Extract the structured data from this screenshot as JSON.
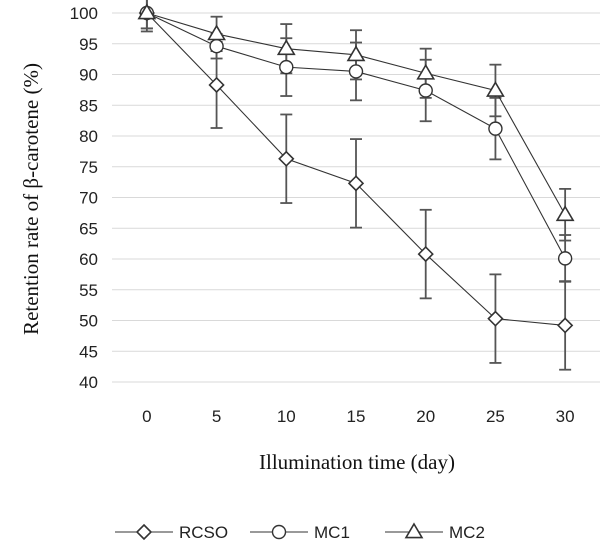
{
  "chart_data": {
    "type": "line",
    "title": "",
    "xlabel": "Illumination time (day)",
    "ylabel": "Retention rate of β-carotene (%)",
    "x": [
      0,
      5,
      10,
      15,
      20,
      25,
      30
    ],
    "xlim": [
      0,
      30
    ],
    "ylim": [
      40,
      100
    ],
    "yticks": [
      40,
      45,
      50,
      55,
      60,
      65,
      70,
      75,
      80,
      85,
      90,
      95,
      100
    ],
    "grid": true,
    "legend_position": "bottom",
    "series": [
      {
        "name": "RCSO",
        "marker": "diamond",
        "values": [
          100,
          88.3,
          76.3,
          72.3,
          60.8,
          50.3,
          49.2
        ],
        "errors": [
          2.5,
          7.0,
          7.2,
          7.2,
          7.2,
          7.2,
          7.2
        ]
      },
      {
        "name": "MC1",
        "marker": "circle",
        "values": [
          100,
          94.6,
          91.2,
          90.5,
          87.4,
          81.2,
          60.1
        ],
        "errors": [
          3.0,
          2.0,
          4.7,
          4.7,
          5.0,
          5.0,
          3.8
        ]
      },
      {
        "name": "MC2",
        "marker": "triangle",
        "values": [
          100,
          96.6,
          94.2,
          93.2,
          90.2,
          87.4,
          67.2
        ],
        "errors": [
          2.5,
          2.8,
          4.0,
          4.0,
          4.0,
          4.2,
          4.2
        ]
      }
    ],
    "colors": {
      "line": "#333333",
      "error_bar": "#555555",
      "grid": "#d9d9d9"
    }
  }
}
